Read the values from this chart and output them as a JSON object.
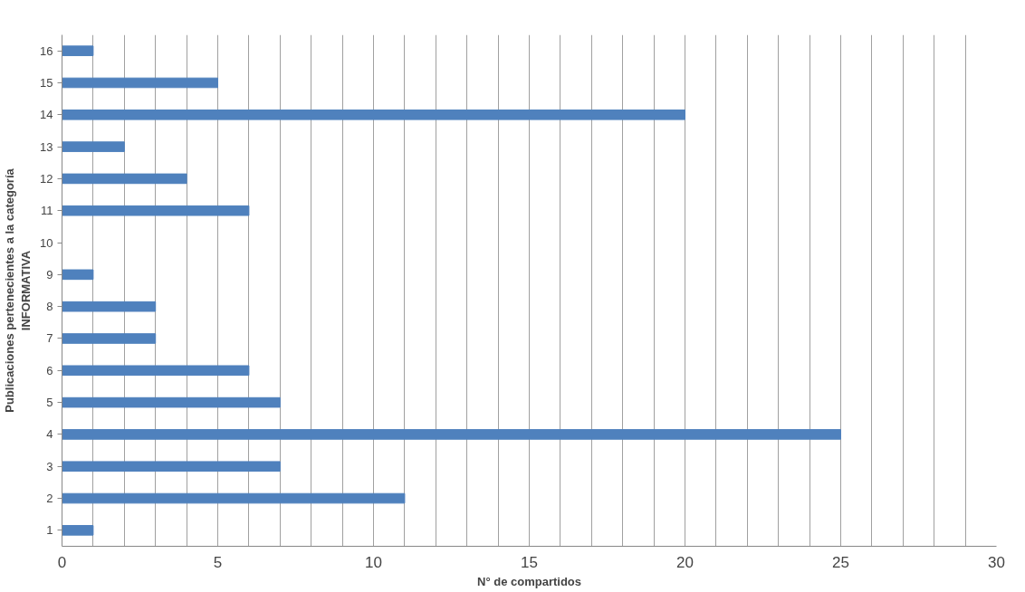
{
  "chart_data": {
    "type": "bar",
    "orientation": "horizontal",
    "xlabel": "N° de compartidos",
    "ylabel": "Publicaciones pertenecientes a la categoría\nINFORMATIVA",
    "categories": [
      "16",
      "15",
      "14",
      "13",
      "12",
      "11",
      "10",
      "9",
      "8",
      "7",
      "6",
      "5",
      "4",
      "3",
      "2",
      "1"
    ],
    "values": [
      1,
      5,
      20,
      2,
      4,
      6,
      0,
      1,
      3,
      3,
      6,
      7,
      25,
      7,
      11,
      1
    ],
    "color": "#4f81bd",
    "xlim": [
      0,
      30
    ],
    "xticks": [
      0,
      {
        "value": 1,
        "label": null
      },
      {
        "value": 2,
        "label": null
      },
      {
        "value": 3,
        "label": null
      },
      {
        "value": 4,
        "label": null
      },
      5,
      {
        "value": 6,
        "label": null
      },
      {
        "value": 7,
        "label": null
      },
      {
        "value": 8,
        "label": null
      },
      {
        "value": 9,
        "label": null
      },
      10,
      {
        "value": 11,
        "label": null
      },
      {
        "value": 12,
        "label": null
      },
      {
        "value": 13,
        "label": null
      },
      {
        "value": 14,
        "label": null
      },
      15,
      {
        "value": 16,
        "label": null
      },
      {
        "value": 17,
        "label": null
      },
      {
        "value": 18,
        "label": null
      },
      {
        "value": 19,
        "label": null
      },
      20,
      {
        "value": 21,
        "label": null
      },
      {
        "value": 22,
        "label": null
      },
      {
        "value": 23,
        "label": null
      },
      {
        "value": 24,
        "label": null
      },
      25,
      {
        "value": 26,
        "label": null
      },
      {
        "value": 27,
        "label": null
      },
      {
        "value": 28,
        "label": null
      },
      {
        "value": 29,
        "label": null
      },
      30
    ],
    "grid": "x"
  }
}
